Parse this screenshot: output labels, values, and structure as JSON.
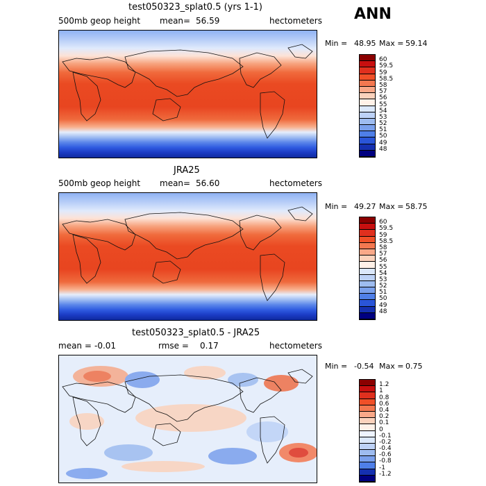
{
  "season": "ANN",
  "panels": [
    {
      "title": "test050323_splat0.5 (yrs 1-1)",
      "left_label": "500mb geop height",
      "mean_label": "mean=",
      "mean_value": "56.59",
      "units": "hectometers",
      "min_label": "Min =",
      "min_value": "48.95",
      "max_label": "Max =",
      "max_value": "59.14",
      "cbar_labels": [
        "60",
        "59.5",
        "59",
        "58.5",
        "58",
        "57",
        "56",
        "55",
        "54",
        "53",
        "52",
        "51",
        "50",
        "49",
        "48"
      ]
    },
    {
      "title": "JRA25",
      "left_label": "500mb geop height",
      "mean_label": "mean=",
      "mean_value": "56.60",
      "units": "hectometers",
      "min_label": "Min =",
      "min_value": "49.27",
      "max_label": "Max =",
      "max_value": "58.75",
      "cbar_labels": [
        "60",
        "59.5",
        "59",
        "58.5",
        "58",
        "57",
        "56",
        "55",
        "54",
        "53",
        "52",
        "51",
        "50",
        "49",
        "48"
      ]
    },
    {
      "title": "test050323_splat0.5 - JRA25",
      "mean_label": "mean =",
      "mean_value": "-0.01",
      "rmse_label": "rmse =",
      "rmse_value": "0.17",
      "units": "hectometers",
      "min_label": "Min =",
      "min_value": "-0.54",
      "max_label": "Max =",
      "max_value": "0.75",
      "cbar_labels": [
        "1.2",
        "1",
        "0.8",
        "0.6",
        "0.4",
        "0.2",
        "0.1",
        "0",
        "-0.1",
        "-0.2",
        "-0.4",
        "-0.6",
        "-0.8",
        "-1",
        "-1.2"
      ]
    }
  ],
  "colors": {
    "abs_scale": [
      "#8b0000",
      "#c80f0f",
      "#e0301e",
      "#f05028",
      "#f47850",
      "#f9a888",
      "#fbd2bc",
      "#fff1e8",
      "#dbe8fb",
      "#bdd2f7",
      "#9ebcf0",
      "#7aa0ec",
      "#4f7fe8",
      "#2a55d8",
      "#1530b0",
      "#000080"
    ],
    "diff_scale": [
      "#8b0000",
      "#c80f0f",
      "#e0301e",
      "#f05028",
      "#f47850",
      "#f9a888",
      "#fbd2bc",
      "#fff1e8",
      "#eef4ff",
      "#dbe8fb",
      "#bdd2f7",
      "#9ebcf0",
      "#7aa0ec",
      "#4f7fe8",
      "#1530b0",
      "#000080"
    ]
  }
}
